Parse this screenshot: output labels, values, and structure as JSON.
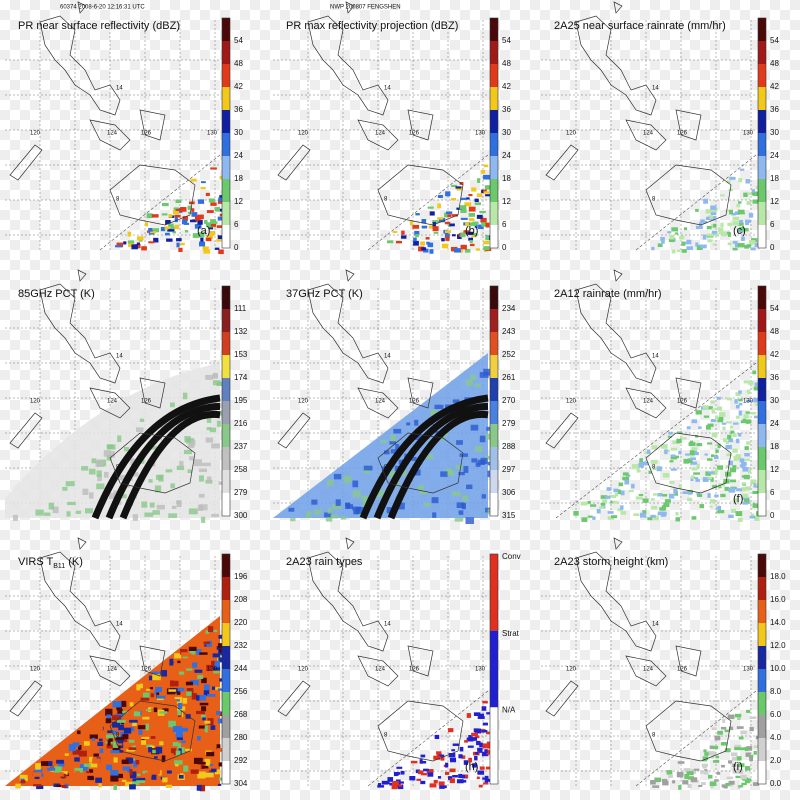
{
  "header": {
    "left": "60374 2008-6-20 12:16:31 UTC",
    "center": "NWP 200807 FENGSHEN"
  },
  "map": {
    "lon_labels": [
      "120",
      "124",
      "126",
      "130"
    ],
    "lat_labels": [
      "14",
      "8"
    ]
  },
  "panels": [
    {
      "title": "PR near surface reflectivity (dBZ)",
      "letter": "(a)",
      "ticks": [
        "54",
        "48",
        "42",
        "36",
        "30",
        "24",
        "18",
        "12",
        "6",
        "0"
      ],
      "colors": [
        "#4a0808",
        "#a01818",
        "#e03a1a",
        "#f2c81a",
        "#1020a0",
        "#2f6fe0",
        "#8fb8f0",
        "#6cc86c",
        "#b8e8a8",
        "#ffffff"
      ]
    },
    {
      "title": "PR max reflectivity projection (dBZ)",
      "letter": "(b)",
      "ticks": [
        "54",
        "48",
        "42",
        "36",
        "30",
        "24",
        "18",
        "12",
        "6",
        "0"
      ],
      "colors": [
        "#4a0808",
        "#a01818",
        "#e03a1a",
        "#f2c81a",
        "#1020a0",
        "#2f6fe0",
        "#8fb8f0",
        "#6cc86c",
        "#b8e8a8",
        "#ffffff"
      ]
    },
    {
      "title": "2A25 near surface rainrate (mm/hr)",
      "letter": "(c)",
      "ticks": [
        "54",
        "48",
        "42",
        "36",
        "30",
        "24",
        "18",
        "12",
        "6",
        "0"
      ],
      "colors": [
        "#4a0808",
        "#a01818",
        "#e03a1a",
        "#f2c81a",
        "#1020a0",
        "#2f6fe0",
        "#8fb8f0",
        "#6cc86c",
        "#b8e8a8",
        "#ffffff"
      ]
    },
    {
      "title": "85GHz PCT (K)",
      "ticks": [
        "111",
        "132",
        "153",
        "174",
        "195",
        "216",
        "237",
        "258",
        "279",
        "300"
      ],
      "colors": [
        "#3a0a0a",
        "#8a2020",
        "#d04020",
        "#f0e040",
        "#6080c0",
        "#9aa0b0",
        "#88c888",
        "#c0c0c0",
        "#e0e0e0",
        "#ffffff"
      ]
    },
    {
      "title": "37GHz PCT (K)",
      "ticks": [
        "234",
        "243",
        "252",
        "261",
        "270",
        "279",
        "288",
        "297",
        "306",
        "315"
      ],
      "colors": [
        "#3a0a0a",
        "#a02020",
        "#e05020",
        "#f0d040",
        "#2040b0",
        "#4a80e0",
        "#8ac88a",
        "#a0c0e8",
        "#d0d8f0",
        "#ffffff"
      ]
    },
    {
      "title": "2A12 rainrate (mm/hr)",
      "letter": "(f)",
      "ticks": [
        "54",
        "48",
        "42",
        "36",
        "30",
        "24",
        "18",
        "12",
        "6",
        "0"
      ],
      "colors": [
        "#4a0808",
        "#a01818",
        "#e03a1a",
        "#f2c81a",
        "#1020a0",
        "#2f6fe0",
        "#8fb8f0",
        "#6cc86c",
        "#b8e8a8",
        "#ffffff"
      ]
    },
    {
      "title": "VIRS T",
      "subscript": "B11",
      "suffix": "(K)",
      "ticks": [
        "196",
        "208",
        "220",
        "232",
        "244",
        "256",
        "268",
        "280",
        "292",
        "304"
      ],
      "colors": [
        "#4a0808",
        "#b02010",
        "#e86018",
        "#f2c81a",
        "#1828a0",
        "#3070e0",
        "#6cc86c",
        "#a0a0a0",
        "#d0d0d0",
        "#ffffff"
      ]
    },
    {
      "title": "2A23 rain types",
      "letter": "(h)",
      "ticks": [
        "Conv",
        "Strat",
        "N/A"
      ],
      "colors": [
        "#e03020",
        "#2020d0",
        "#ffffff"
      ]
    },
    {
      "title": "2A23 storm height (km)",
      "letter": "(i)",
      "ticks": [
        "18.0",
        "16.0",
        "14.0",
        "12.0",
        "10.0",
        "8.0",
        "6.0",
        "4.0",
        "2.0",
        "0.0"
      ],
      "colors": [
        "#4a0808",
        "#b02010",
        "#e86018",
        "#f2c81a",
        "#1828a0",
        "#3070e0",
        "#6cc86c",
        "#a0a0a0",
        "#d0d0d0",
        "#ffffff"
      ]
    }
  ]
}
